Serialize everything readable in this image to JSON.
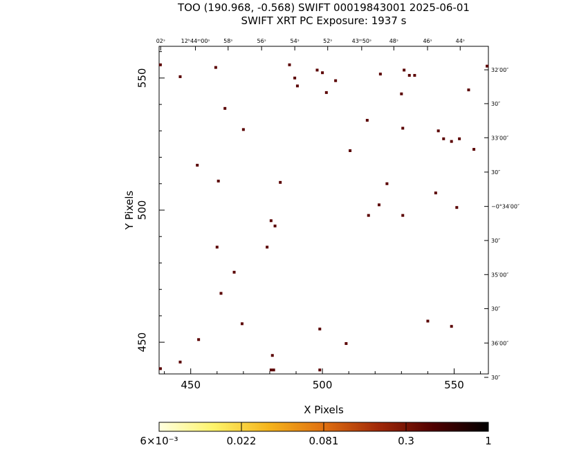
{
  "header": {
    "title": "TOO (190.968, -0.568) SWIFT 00019843001 2025-06-01",
    "subtitle": "SWIFT XRT PC Exposure:       1937 s"
  },
  "chart_data": {
    "type": "scatter",
    "xlabel": "X Pixels",
    "ylabel": "Y Pixels",
    "xlim": [
      438,
      563
    ],
    "ylim": [
      438,
      562
    ],
    "x_ticks": [
      {
        "value": 450,
        "label": "450"
      },
      {
        "value": 500,
        "label": "500"
      },
      {
        "value": 550,
        "label": "550"
      }
    ],
    "y_ticks": [
      {
        "value": 450,
        "label": "450"
      },
      {
        "value": 500,
        "label": "500"
      },
      {
        "value": 550,
        "label": "550"
      }
    ],
    "ra_labels": [
      {
        "x": 438.6,
        "text": "02ˢ"
      },
      {
        "x": 451.8,
        "text": "12ʰ44ᵐ00ˢ"
      },
      {
        "x": 464.2,
        "text": "58ˢ"
      },
      {
        "x": 476.9,
        "text": "56ˢ"
      },
      {
        "x": 489.5,
        "text": "54ˢ"
      },
      {
        "x": 502.0,
        "text": "52ˢ"
      },
      {
        "x": 514.9,
        "text": "43ᵐ50ˢ"
      },
      {
        "x": 527.1,
        "text": "48ˢ"
      },
      {
        "x": 539.9,
        "text": "46ˢ"
      },
      {
        "x": 552.3,
        "text": "44ˢ"
      }
    ],
    "dec_labels": [
      {
        "y": 553.1,
        "text": "32′00″"
      },
      {
        "y": 540.3,
        "text": "30″"
      },
      {
        "y": 527.4,
        "text": "33′00″"
      },
      {
        "y": 514.4,
        "text": "30″"
      },
      {
        "y": 501.4,
        "text": "−0°34′00″"
      },
      {
        "y": 488.5,
        "text": "30″"
      },
      {
        "y": 475.6,
        "text": "35′00″"
      },
      {
        "y": 462.7,
        "text": "30″"
      },
      {
        "y": 449.7,
        "text": "36′00″"
      },
      {
        "y": 436.7,
        "text": "30″"
      }
    ],
    "points": [
      {
        "x": 438.5,
        "y": 555
      },
      {
        "x": 446.0,
        "y": 550.5
      },
      {
        "x": 452.5,
        "y": 517
      },
      {
        "x": 453,
        "y": 451
      },
      {
        "x": 459.5,
        "y": 554
      },
      {
        "x": 463,
        "y": 538.5
      },
      {
        "x": 470,
        "y": 530.5
      },
      {
        "x": 460.5,
        "y": 511
      },
      {
        "x": 460,
        "y": 486
      },
      {
        "x": 466.5,
        "y": 476.5
      },
      {
        "x": 461.5,
        "y": 468.5
      },
      {
        "x": 469.5,
        "y": 457
      },
      {
        "x": 446,
        "y": 442.5
      },
      {
        "x": 487.5,
        "y": 555
      },
      {
        "x": 489.5,
        "y": 550
      },
      {
        "x": 490.5,
        "y": 547
      },
      {
        "x": 501.5,
        "y": 544.5
      },
      {
        "x": 498,
        "y": 553
      },
      {
        "x": 500,
        "y": 552
      },
      {
        "x": 505,
        "y": 549
      },
      {
        "x": 510.5,
        "y": 522.5
      },
      {
        "x": 517,
        "y": 534
      },
      {
        "x": 522,
        "y": 551.5
      },
      {
        "x": 531,
        "y": 553
      },
      {
        "x": 533,
        "y": 551
      },
      {
        "x": 535,
        "y": 551
      },
      {
        "x": 530,
        "y": 544
      },
      {
        "x": 530.5,
        "y": 531
      },
      {
        "x": 544,
        "y": 530
      },
      {
        "x": 546,
        "y": 527
      },
      {
        "x": 549,
        "y": 526
      },
      {
        "x": 552,
        "y": 527
      },
      {
        "x": 555.5,
        "y": 545.5
      },
      {
        "x": 557.5,
        "y": 523
      },
      {
        "x": 562.5,
        "y": 554.5
      },
      {
        "x": 484,
        "y": 510.5
      },
      {
        "x": 480.5,
        "y": 496
      },
      {
        "x": 482,
        "y": 494
      },
      {
        "x": 479,
        "y": 486
      },
      {
        "x": 524.5,
        "y": 510
      },
      {
        "x": 521.5,
        "y": 502
      },
      {
        "x": 517.5,
        "y": 498
      },
      {
        "x": 530.5,
        "y": 498
      },
      {
        "x": 543,
        "y": 506.5
      },
      {
        "x": 551,
        "y": 501
      },
      {
        "x": 540,
        "y": 458
      },
      {
        "x": 549,
        "y": 456
      },
      {
        "x": 499,
        "y": 455
      },
      {
        "x": 509,
        "y": 449.5
      },
      {
        "x": 481,
        "y": 445
      },
      {
        "x": 480.5,
        "y": 439.5
      },
      {
        "x": 481.5,
        "y": 439.5
      },
      {
        "x": 499,
        "y": 439.5
      },
      {
        "x": 438.5,
        "y": 440
      }
    ],
    "colorbar": {
      "labels": [
        "6×10⁻³",
        "0.022",
        "0.081",
        "0.3",
        "1"
      ],
      "colors": [
        "#ffffe0",
        "#fdf36a",
        "#f5b41c",
        "#e07010",
        "#a02808",
        "#500000",
        "#000000"
      ]
    }
  }
}
